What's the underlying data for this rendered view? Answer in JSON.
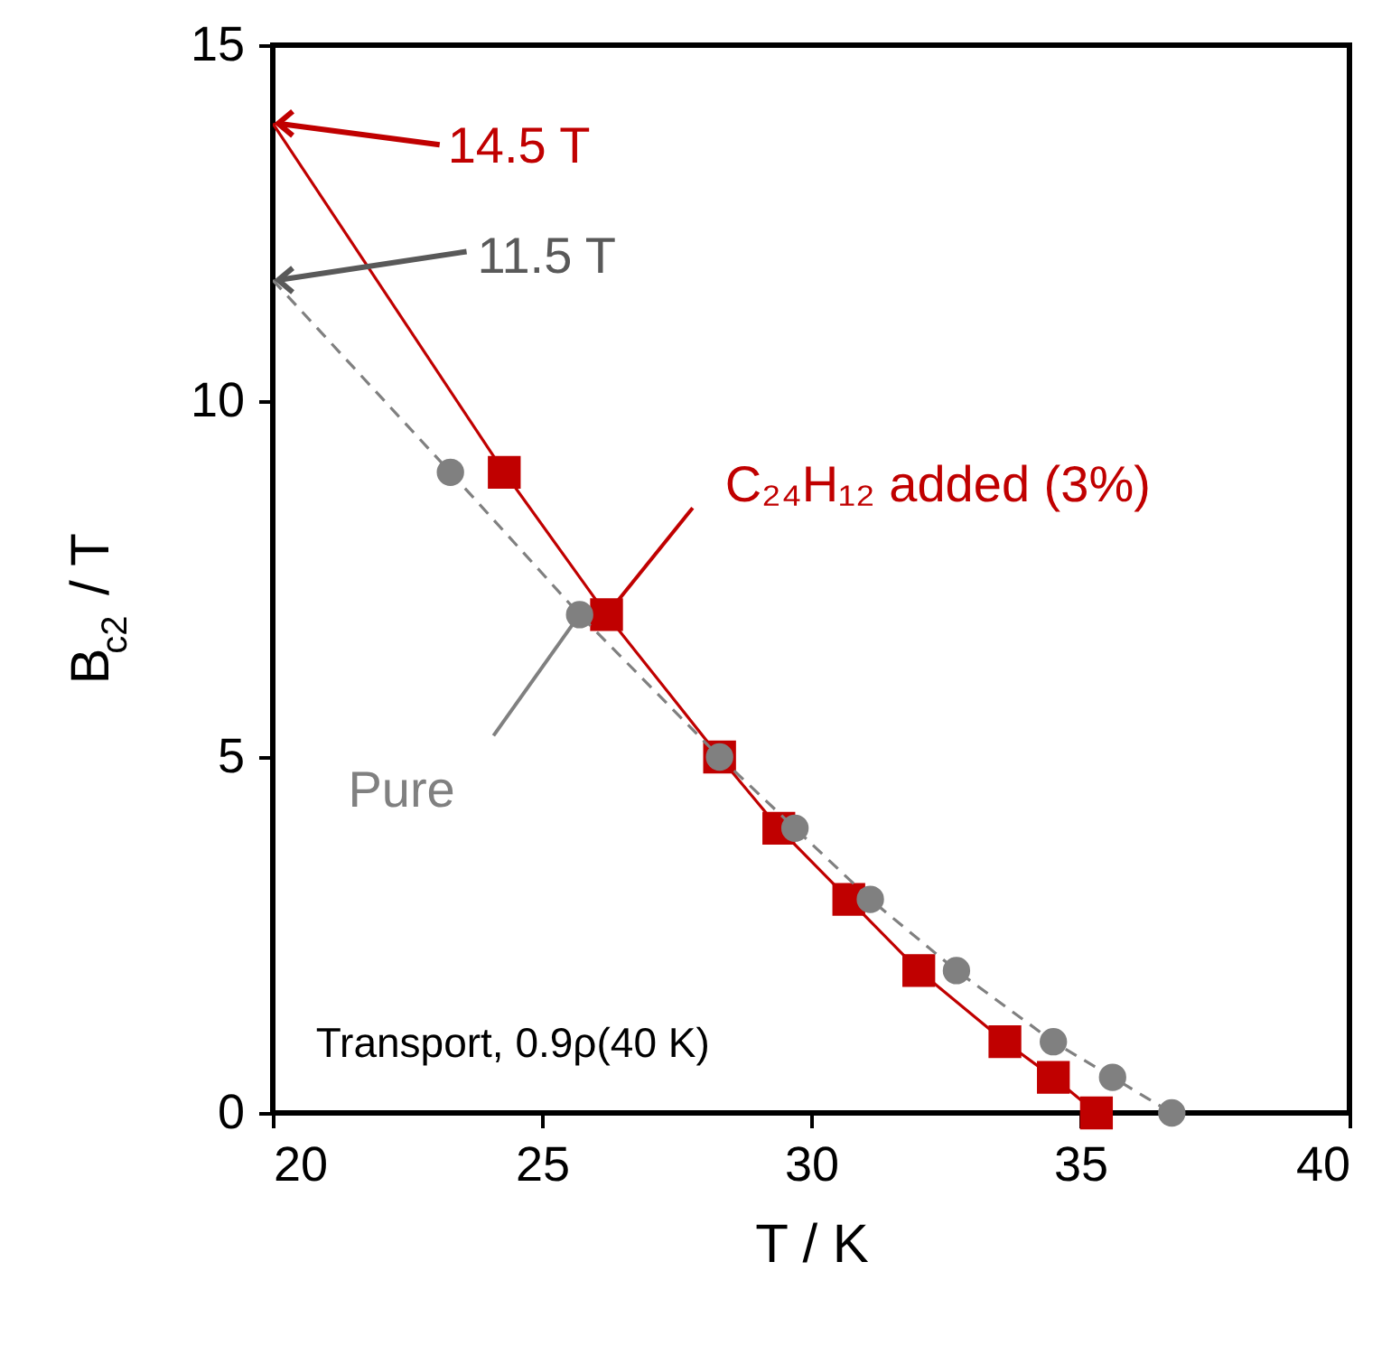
{
  "chart_data": {
    "type": "line",
    "xlabel": "T / K",
    "ylabel": "B$_{c2}$ / T",
    "xlim": [
      20,
      40
    ],
    "ylim": [
      0,
      15
    ],
    "xticks": [
      20,
      25,
      30,
      35,
      40
    ],
    "yticks": [
      0,
      5,
      10,
      15
    ],
    "grid": false,
    "series": [
      {
        "name": "C₂₄H₁₂ added (3%)",
        "color": "#c00000",
        "marker": "square",
        "line_style": "solid",
        "x": [
          24.3,
          26.2,
          28.3,
          29.4,
          30.7,
          32.0,
          33.6,
          34.5,
          35.3
        ],
        "values": [
          9,
          7,
          5,
          4,
          3,
          2,
          1,
          0.5,
          0
        ]
      },
      {
        "name": "Pure",
        "color": "#808080",
        "marker": "circle",
        "line_style": "dashed",
        "x": [
          23.3,
          25.7,
          28.3,
          29.7,
          31.1,
          32.7,
          34.5,
          35.6,
          36.7
        ],
        "values": [
          9,
          7,
          5,
          4,
          3,
          2,
          1,
          0.5,
          0
        ]
      },
      {
        "color": "#c00000",
        "marker": "none",
        "line_style": "solid",
        "x": [
          20,
          24.3
        ],
        "values": [
          13.9,
          9
        ]
      },
      {
        "color": "#808080",
        "marker": "none",
        "line_style": "dashed",
        "x": [
          20,
          23.3
        ],
        "values": [
          11.7,
          9
        ]
      }
    ],
    "annotations": [
      {
        "text": "14.5 T",
        "x": 20,
        "y": 13.9
      },
      {
        "text": "11.5 T",
        "x": 20,
        "y": 11.7
      },
      "Transport, 0.9ρ(40 K)"
    ]
  }
}
